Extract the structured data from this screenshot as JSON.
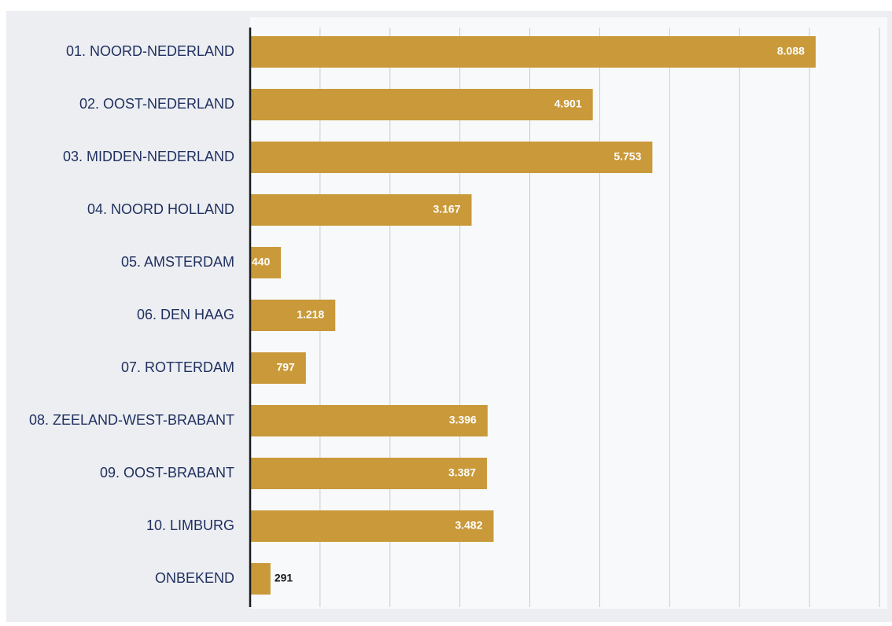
{
  "chart_data": {
    "type": "bar",
    "orientation": "horizontal",
    "categories": [
      "01. NOORD-NEDERLAND",
      "02. OOST-NEDERLAND",
      "03. MIDDEN-NEDERLAND",
      "04. NOORD HOLLAND",
      "05. AMSTERDAM",
      "06. DEN HAAG",
      "07. ROTTERDAM",
      "08. ZEELAND-WEST-BRABANT",
      "09. OOST-BRABANT",
      "10. LIMBURG",
      "ONBEKEND"
    ],
    "values": [
      8088,
      4901,
      5753,
      3167,
      440,
      1218,
      797,
      3396,
      3387,
      3482,
      291
    ],
    "value_labels": [
      "8.088",
      "4.901",
      "5.753",
      "3.167",
      "440",
      "1.218",
      "797",
      "3.396",
      "3.387",
      "3.482",
      "291"
    ],
    "xlim": [
      0,
      9000
    ],
    "grid": true,
    "bar_color": "#c9993a",
    "label_color": "#1f2f5e",
    "value_label_color": "#ffffff",
    "outside_value_label_color": "#1a1a1a"
  }
}
